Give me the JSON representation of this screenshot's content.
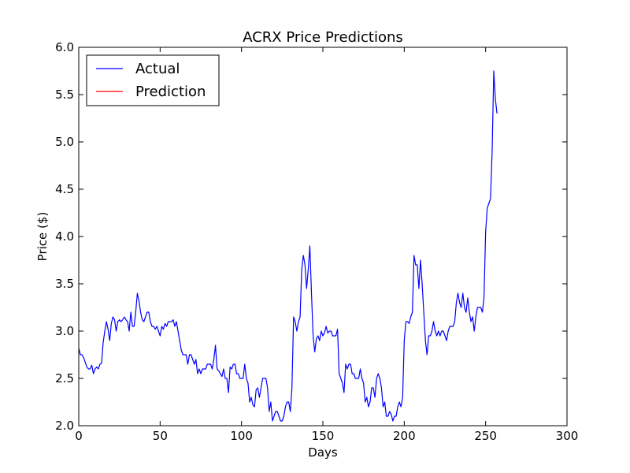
{
  "colors": {
    "actual": "#0000ff",
    "prediction": "#ff0000",
    "axes": "#000000",
    "background": "#ffffff"
  },
  "chart_data": {
    "type": "line",
    "title": "ACRX Price Predictions",
    "xlabel": "Days",
    "ylabel": "Price ($)",
    "xlim": [
      0,
      300
    ],
    "ylim": [
      2.0,
      6.0
    ],
    "grid": false,
    "legend_position": "top-left",
    "x_ticks": [
      "0",
      "50",
      "100",
      "150",
      "200",
      "250",
      "300"
    ],
    "y_ticks": [
      "2.0",
      "2.5",
      "3.0",
      "3.5",
      "4.0",
      "4.5",
      "5.0",
      "5.5",
      "6.0"
    ],
    "series": [
      {
        "name": "Actual",
        "color": "#0000ff",
        "y": [
          2.82,
          2.75,
          2.75,
          2.72,
          2.67,
          2.62,
          2.6,
          2.6,
          2.64,
          2.55,
          2.6,
          2.62,
          2.6,
          2.65,
          2.66,
          2.88,
          3.0,
          3.1,
          3.02,
          2.9,
          3.08,
          3.15,
          3.12,
          3.0,
          3.1,
          3.12,
          3.1,
          3.12,
          3.15,
          3.12,
          3.1,
          3.0,
          3.2,
          3.05,
          3.05,
          3.2,
          3.4,
          3.32,
          3.2,
          3.12,
          3.1,
          3.15,
          3.2,
          3.2,
          3.1,
          3.05,
          3.05,
          3.02,
          3.05,
          3.0,
          2.95,
          3.05,
          3.02,
          3.08,
          3.05,
          3.1,
          3.1,
          3.1,
          3.12,
          3.05,
          3.1,
          3.0,
          2.9,
          2.8,
          2.75,
          2.75,
          2.75,
          2.65,
          2.75,
          2.75,
          2.7,
          2.65,
          2.7,
          2.55,
          2.6,
          2.55,
          2.6,
          2.6,
          2.6,
          2.65,
          2.65,
          2.65,
          2.6,
          2.7,
          2.85,
          2.6,
          2.58,
          2.55,
          2.52,
          2.6,
          2.5,
          2.5,
          2.35,
          2.62,
          2.6,
          2.65,
          2.65,
          2.55,
          2.55,
          2.5,
          2.5,
          2.5,
          2.65,
          2.5,
          2.45,
          2.25,
          2.3,
          2.22,
          2.2,
          2.38,
          2.4,
          2.3,
          2.4,
          2.5,
          2.5,
          2.5,
          2.4,
          2.15,
          2.25,
          2.05,
          2.1,
          2.15,
          2.15,
          2.1,
          2.05,
          2.05,
          2.1,
          2.2,
          2.25,
          2.25,
          2.15,
          2.4,
          3.15,
          3.1,
          3.0,
          3.1,
          3.15,
          3.65,
          3.8,
          3.7,
          3.45,
          3.65,
          3.9,
          3.4,
          2.95,
          2.78,
          2.92,
          2.95,
          2.9,
          3.0,
          2.95,
          2.98,
          3.05,
          2.98,
          3.0,
          3.0,
          2.95,
          2.95,
          2.95,
          3.02,
          2.55,
          2.5,
          2.45,
          2.35,
          2.65,
          2.6,
          2.65,
          2.65,
          2.55,
          2.55,
          2.5,
          2.5,
          2.5,
          2.6,
          2.5,
          2.45,
          2.25,
          2.3,
          2.2,
          2.25,
          2.4,
          2.4,
          2.3,
          2.5,
          2.55,
          2.5,
          2.4,
          2.2,
          2.25,
          2.1,
          2.1,
          2.15,
          2.12,
          2.05,
          2.1,
          2.1,
          2.2,
          2.25,
          2.2,
          2.3,
          2.9,
          3.1,
          3.1,
          3.08,
          3.15,
          3.2,
          3.8,
          3.7,
          3.7,
          3.45,
          3.75,
          3.5,
          3.2,
          2.9,
          2.75,
          2.95,
          2.95,
          3.0,
          3.1,
          3.0,
          2.95,
          3.0,
          2.95,
          3.0,
          3.0,
          2.95,
          2.9,
          3.0,
          3.05,
          3.05,
          3.05,
          3.1,
          3.3,
          3.4,
          3.3,
          3.25,
          3.4,
          3.25,
          3.2,
          3.35,
          3.2,
          3.1,
          3.15,
          3.0,
          3.15,
          3.25,
          3.25,
          3.25,
          3.2,
          3.35,
          4.05,
          4.3,
          4.35,
          4.4,
          4.9,
          5.75,
          5.45,
          5.3
        ]
      },
      {
        "name": "Prediction",
        "color": "#ff0000",
        "y": []
      }
    ]
  }
}
